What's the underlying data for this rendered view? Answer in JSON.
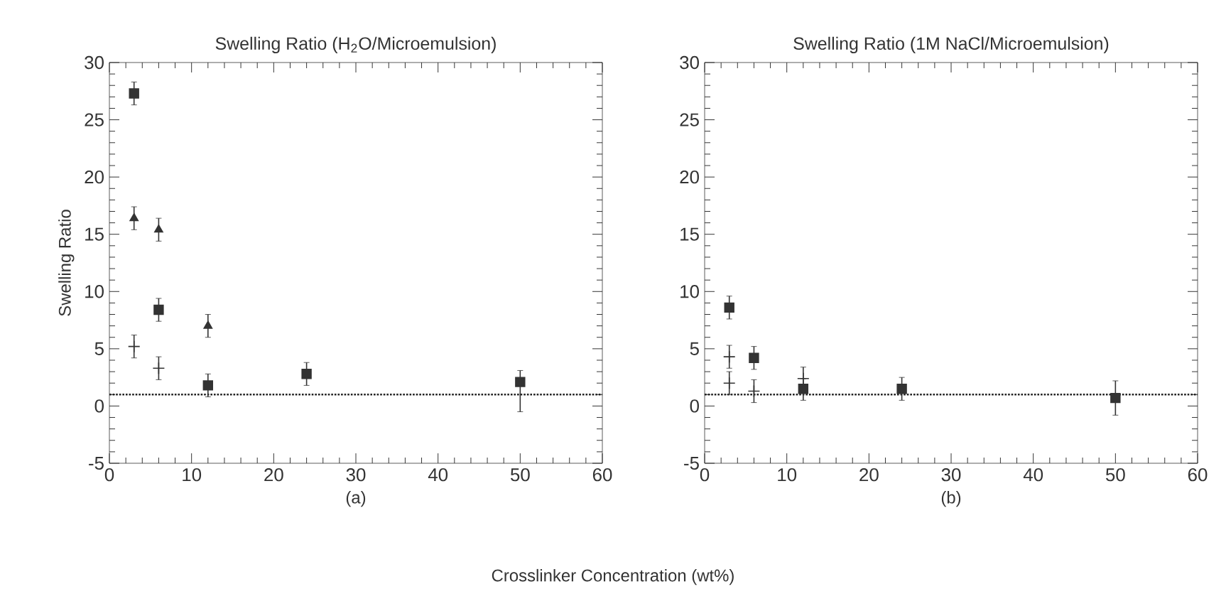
{
  "chart_data": [
    {
      "type": "scatter",
      "title": "Swelling Ratio (H$_{2}$O/Microemulsion)",
      "xlabel": "(a)",
      "ylabel": "Swelling Ratio",
      "annotations": [
        "Crosslinker Concentration (wt%)"
      ],
      "x": [
        3,
        6,
        12,
        24,
        50
      ],
      "xlim": [
        0,
        60
      ],
      "ylim": [
        -5,
        30
      ],
      "xticks": [
        0,
        10,
        20,
        30,
        40,
        50,
        60
      ],
      "yticks": [
        -5,
        0,
        5,
        10,
        15,
        20,
        25,
        30
      ],
      "grid": false,
      "ref_lines": [
        {
          "axis": "y",
          "value": 1,
          "line_style": "dotted",
          "color": "#222222"
        }
      ],
      "series": [
        {
          "color": "#333333",
          "marker": "square",
          "values": [
            27.3,
            8.4,
            1.8,
            2.8,
            2.1
          ],
          "errors": [
            1,
            1,
            1,
            1,
            [
              -0.5,
              3.1
            ]
          ]
        },
        {
          "color": "#333333",
          "marker": "triangle",
          "values": [
            16.4,
            15.4,
            7.0,
            null,
            null
          ],
          "errors": [
            1,
            1,
            1,
            null,
            null
          ]
        },
        {
          "color": "#333333",
          "marker": "cross",
          "values": [
            5.2,
            3.3,
            null,
            null,
            null
          ],
          "errors": [
            1,
            1,
            null,
            null,
            null
          ]
        }
      ]
    },
    {
      "type": "scatter",
      "title": "Swelling Ratio (1M NaCl/Microemulsion)",
      "xlabel": "(b)",
      "x": [
        3,
        6,
        12,
        24,
        50
      ],
      "xlim": [
        0,
        60
      ],
      "ylim": [
        -5,
        30
      ],
      "xticks": [
        0,
        10,
        20,
        30,
        40,
        50,
        60
      ],
      "yticks": [
        -5,
        0,
        5,
        10,
        15,
        20,
        25,
        30
      ],
      "grid": false,
      "ref_lines": [
        {
          "axis": "y",
          "value": 1,
          "line_style": "dotted",
          "color": "#222222"
        }
      ],
      "series": [
        {
          "color": "#333333",
          "marker": "square",
          "values": [
            8.6,
            4.2,
            1.5,
            1.5,
            0.7
          ],
          "errors": [
            1,
            1,
            [
              0.5,
              3.4
            ],
            1,
            1.5
          ]
        },
        {
          "color": "#333333",
          "marker": "cross",
          "x": [
            3,
            3,
            6,
            12
          ],
          "values": [
            4.3,
            2.0,
            1.3,
            2.4
          ],
          "errors": [
            1,
            1,
            1,
            null
          ]
        }
      ]
    }
  ]
}
